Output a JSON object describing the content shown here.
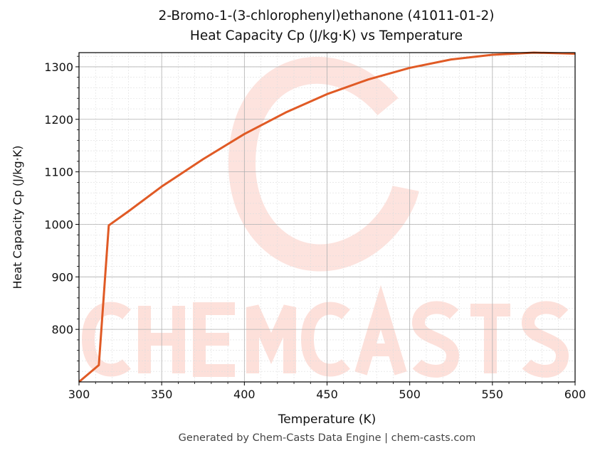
{
  "chart_data": {
    "type": "line",
    "title": "2-Bromo-1-(3-chlorophenyl)ethanone (41011-01-2)",
    "subtitle": "Heat Capacity Cp (J/kg·K) vs Temperature",
    "xlabel": "Temperature (K)",
    "ylabel": "Heat Capacity Cp (J/kg·K)",
    "xlim": [
      300,
      600
    ],
    "ylim": [
      700,
      1327
    ],
    "xticks": [
      300,
      350,
      400,
      450,
      500,
      550,
      600
    ],
    "yticks": [
      800,
      900,
      1000,
      1100,
      1200,
      1300
    ],
    "grid": true,
    "line_color": "#e05a25",
    "series": [
      {
        "x": [
          300,
          312,
          318,
          330,
          350,
          375,
          400,
          425,
          450,
          475,
          500,
          525,
          550,
          575,
          600
        ],
        "y": [
          700,
          732,
          998,
          1025,
          1072,
          1124,
          1172,
          1213,
          1248,
          1276,
          1298,
          1314,
          1323,
          1327,
          1325
        ]
      }
    ]
  },
  "watermark": "CHEMCASTS",
  "footer": "Generated by Chem-Casts Data Engine | chem-casts.com"
}
